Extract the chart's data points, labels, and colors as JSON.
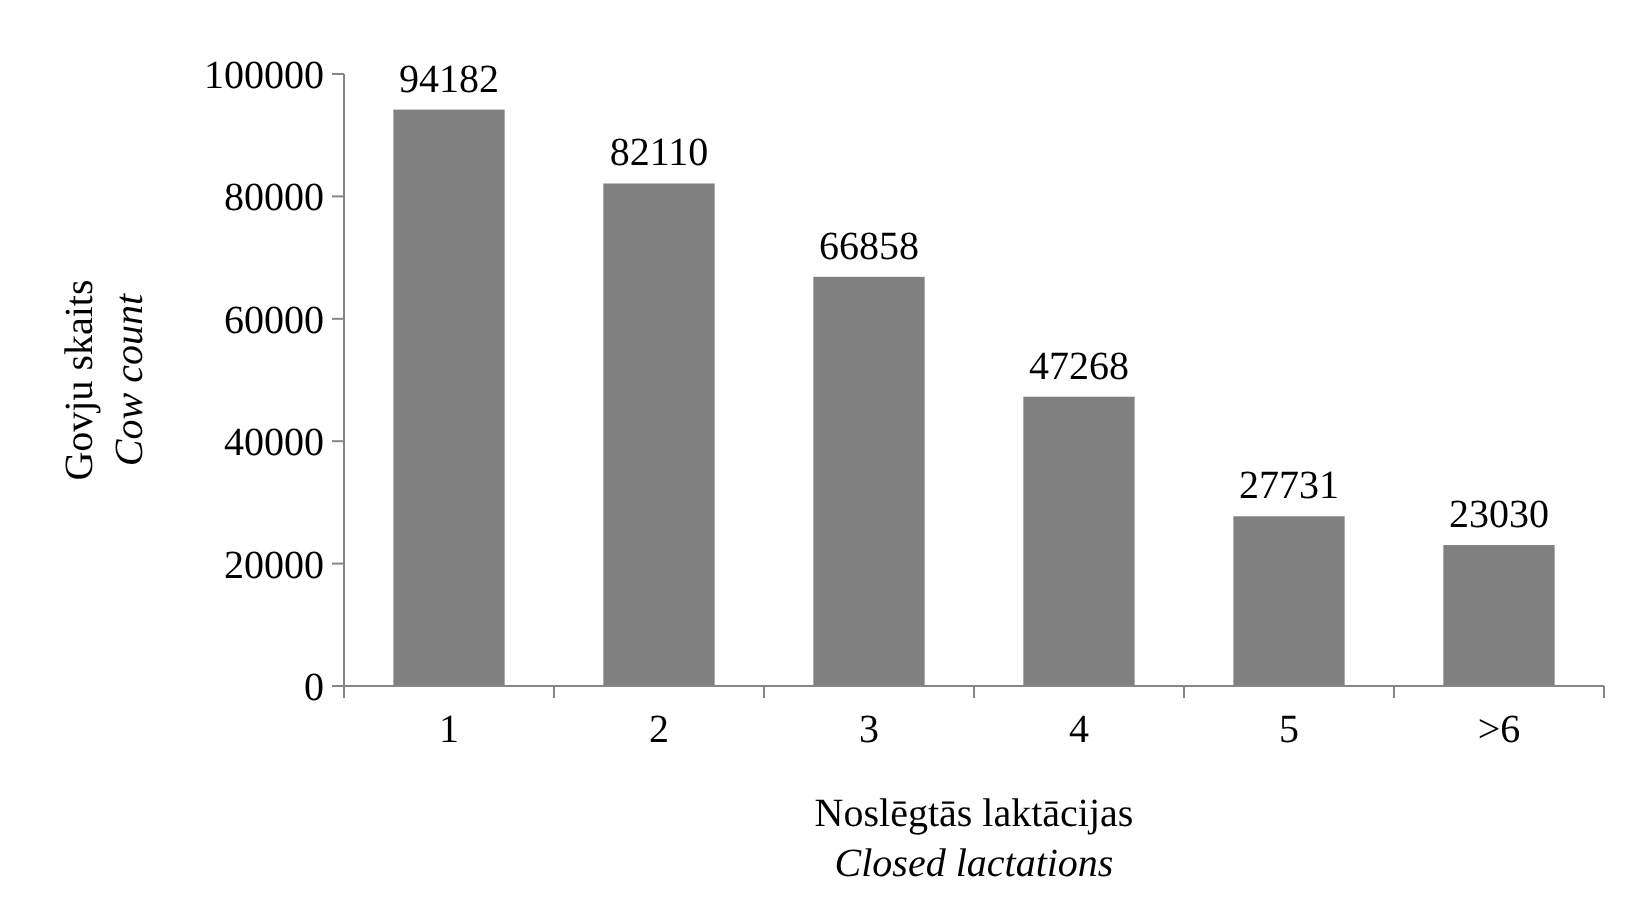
{
  "chart_data": {
    "type": "bar",
    "xlabel": "Noslēgtās laktācijas\nClosed lactations",
    "ylabel": "Govju skaits\nCow count",
    "categories": [
      "1",
      "2",
      "3",
      "4",
      "5",
      ">6"
    ],
    "values": [
      94182,
      82110,
      66858,
      47268,
      27731,
      23030
    ],
    "color": "#808080",
    "ylim": [
      0,
      100000
    ],
    "yticks": [
      0,
      20000,
      40000,
      60000,
      80000,
      100000
    ],
    "grid": false,
    "data_labels": true
  }
}
